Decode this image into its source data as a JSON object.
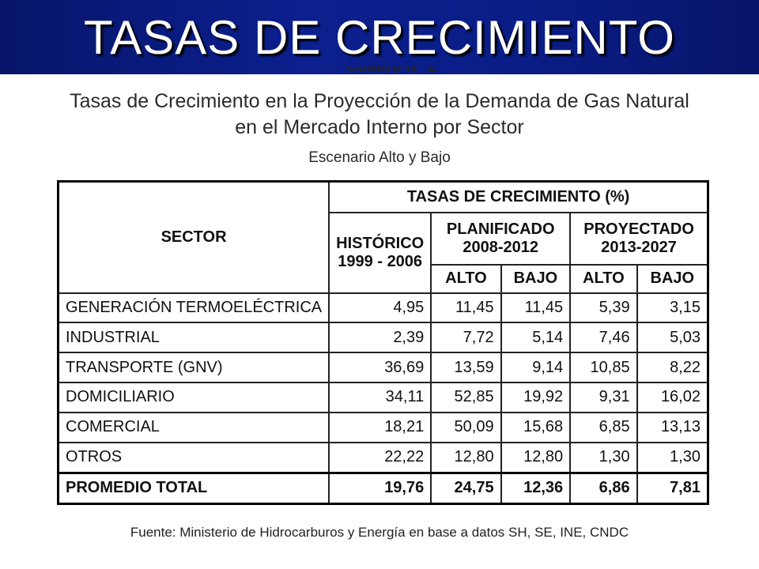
{
  "slide_title": "TASAS DE CRECIMIENTO",
  "clipped_caption": "Cuadro N° 2",
  "heading_line1": "Tasas de Crecimiento en la Proyección de la Demanda de Gas Natural",
  "heading_line2": "en el Mercado Interno por Sector",
  "heading_line3": "Escenario Alto y Bajo",
  "table": {
    "sector_header": "SECTOR",
    "group_header": "TASAS DE CRECIMIENTO (%)",
    "historico": {
      "title": "HISTÓRICO",
      "years": "1999 - 2006"
    },
    "planificado": {
      "title": "PLANIFICADO",
      "years": "2008-2012"
    },
    "proyectado": {
      "title": "PROYECTADO",
      "years": "2013-2027"
    },
    "alto": "ALTO",
    "bajo": "BAJO",
    "rows": [
      {
        "sector": "GENERACIÓN TERMOELÉCTRICA",
        "values": [
          "4,95",
          "11,45",
          "11,45",
          "5,39",
          "3,15"
        ]
      },
      {
        "sector": "INDUSTRIAL",
        "values": [
          "2,39",
          "7,72",
          "5,14",
          "7,46",
          "5,03"
        ]
      },
      {
        "sector": "TRANSPORTE (GNV)",
        "values": [
          "36,69",
          "13,59",
          "9,14",
          "10,85",
          "8,22"
        ]
      },
      {
        "sector": "DOMICILIARIO",
        "values": [
          "34,11",
          "52,85",
          "19,92",
          "9,31",
          "16,02"
        ]
      },
      {
        "sector": "COMERCIAL",
        "values": [
          "18,21",
          "50,09",
          "15,68",
          "6,85",
          "13,13"
        ]
      },
      {
        "sector": "OTROS",
        "values": [
          "22,22",
          "12,80",
          "12,80",
          "1,30",
          "1,30"
        ]
      }
    ],
    "total": {
      "sector": "PROMEDIO TOTAL",
      "values": [
        "19,76",
        "24,75",
        "12,36",
        "6,86",
        "7,81"
      ]
    }
  },
  "source": "Fuente: Ministerio de Hidrocarburos y Energía en base a datos SH, SE, INE, CNDC"
}
